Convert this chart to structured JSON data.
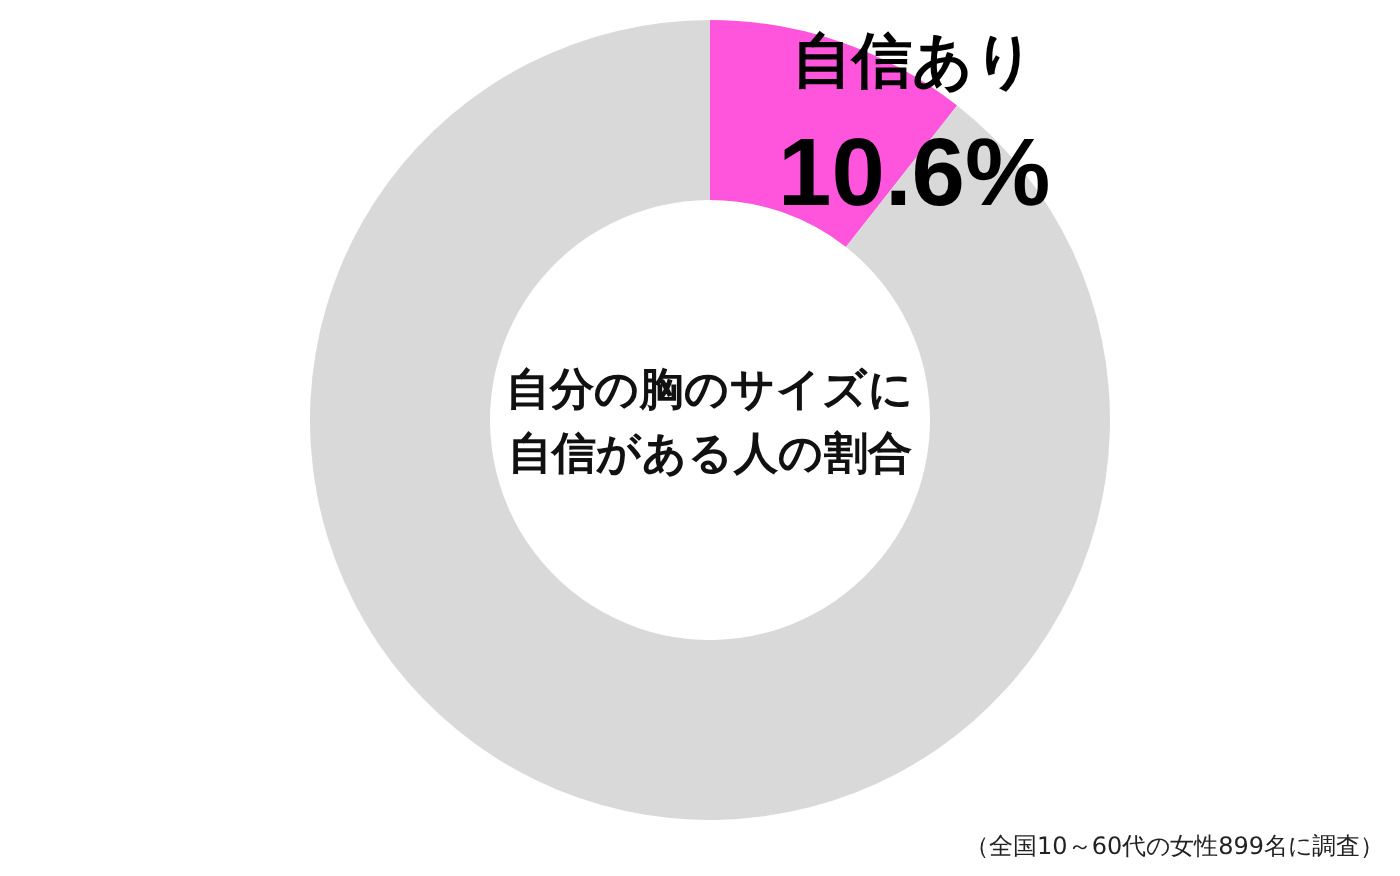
{
  "chart_data": {
    "type": "donut",
    "title": "自分の胸のサイズに自信がある人の割合",
    "categories": [
      "自信あり",
      null
    ],
    "values": [
      10.6,
      89.4
    ],
    "colors": [
      "#ff55dd",
      "#d9d9d9"
    ],
    "value_labels": [
      "10.6%",
      null
    ],
    "annotations": [
      "（全国10～60代の女性899名に調査）"
    ]
  }
}
